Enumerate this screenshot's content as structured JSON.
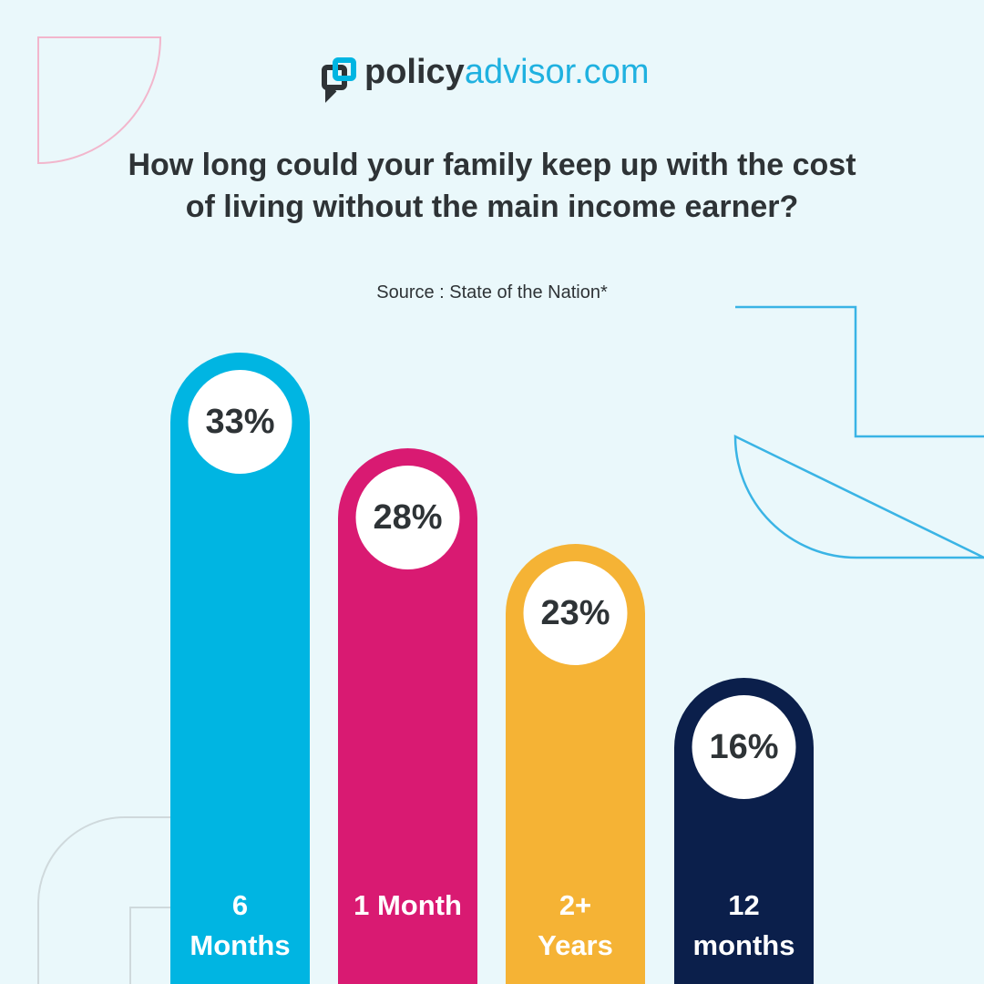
{
  "logo": {
    "policy": "policy",
    "advisor": "advisor.com"
  },
  "chart_data": {
    "type": "bar",
    "title": "How long could your family keep up with the cost of living without the main income earner?",
    "subtitle": "Source : State of the Nation*",
    "categories": [
      "6 Months",
      "1 Month",
      "2+ Years",
      "12 months"
    ],
    "values": [
      33,
      28,
      23,
      16
    ],
    "value_labels": [
      "33%",
      "28%",
      "23%",
      "16%"
    ],
    "colors": [
      "#00b5e2",
      "#d91a72",
      "#f5b335",
      "#0b1f4b"
    ],
    "ylim": [
      0,
      35
    ]
  }
}
